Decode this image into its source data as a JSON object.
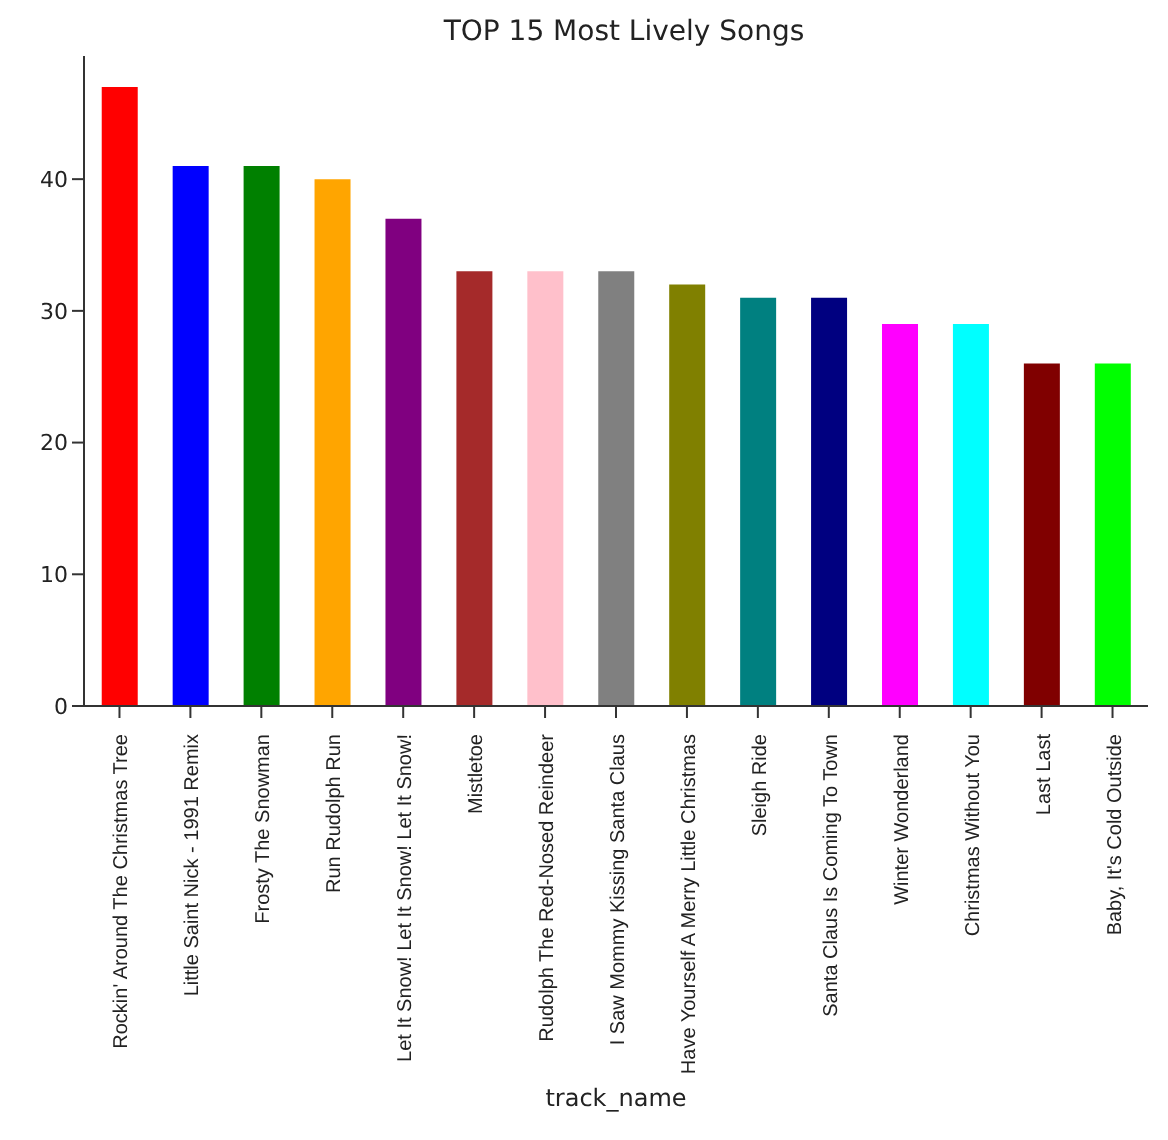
{
  "chart_data": {
    "type": "bar",
    "title": "TOP 15 Most Lively Songs",
    "xlabel": "track_name",
    "categories": [
      "Rockin' Around The Christmas Tree",
      "Little Saint Nick - 1991 Remix",
      "Frosty The Snowman",
      "Run Rudolph Run",
      "Let It Snow! Let It Snow! Let It Snow!",
      "Mistletoe",
      "Rudolph The Red-Nosed Reindeer",
      "I Saw Mommy Kissing Santa Claus",
      "Have Yourself A Merry Little Christmas",
      "Sleigh Ride",
      "Santa Claus Is Coming To Town",
      "Winter Wonderland",
      "Christmas Without You",
      "Last Last",
      "Baby, It's Cold Outside"
    ],
    "values": [
      47,
      41,
      41,
      40,
      37,
      33,
      33,
      33,
      32,
      31,
      31,
      29,
      29,
      26,
      26
    ],
    "colors": [
      "#ff0000",
      "#0000ff",
      "#008000",
      "#ffa500",
      "#800080",
      "#a52a2a",
      "#ffc0cb",
      "#808080",
      "#808000",
      "#008080",
      "#000080",
      "#ff00ff",
      "#00ffff",
      "#800000",
      "#00ff00"
    ],
    "ylim": [
      0,
      49.35
    ],
    "yticks": [
      0,
      10,
      20,
      30,
      40
    ],
    "grid": false,
    "legend": false
  }
}
